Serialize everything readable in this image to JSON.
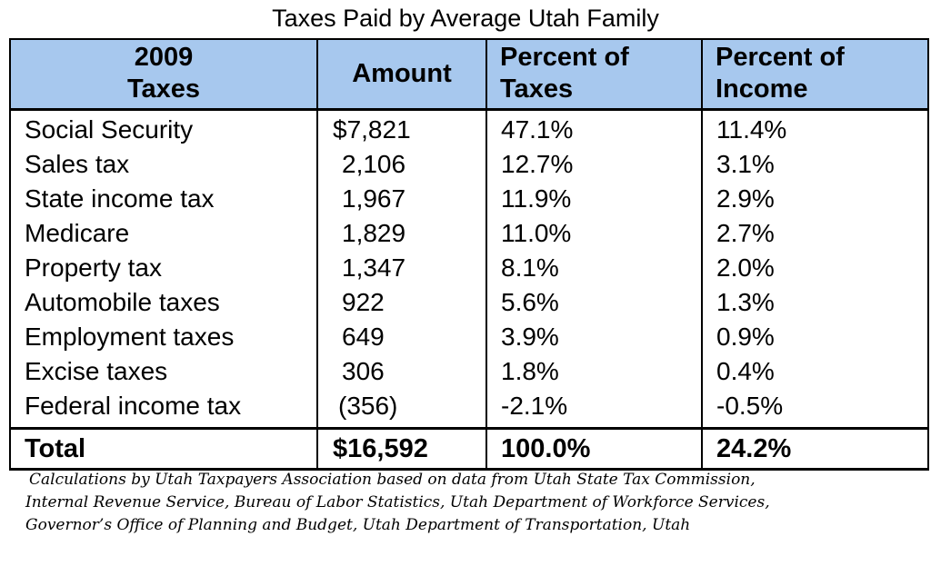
{
  "title": "Taxes Paid by Average Utah Family",
  "headers": {
    "col1_line1": "2009",
    "col1_line2": "Taxes",
    "col2": "Amount",
    "col3_line1": "Percent of",
    "col3_line2": "Taxes",
    "col4_line1": "Percent of",
    "col4_line2": "Income"
  },
  "rows": [
    {
      "tax": "Social Security",
      "amount": "$7,821",
      "pct_taxes": "47.1%",
      "pct_income": "11.4%"
    },
    {
      "tax": "Sales tax",
      "amount": "2,106",
      "pct_taxes": "12.7%",
      "pct_income": "3.1%"
    },
    {
      "tax": "State income tax",
      "amount": "1,967",
      "pct_taxes": "11.9%",
      "pct_income": "2.9%"
    },
    {
      "tax": "Medicare",
      "amount": "1,829",
      "pct_taxes": "11.0%",
      "pct_income": "2.7%"
    },
    {
      "tax": "Property tax",
      "amount": "1,347",
      "pct_taxes": "8.1%",
      "pct_income": "2.0%"
    },
    {
      "tax": "Automobile taxes",
      "amount": "922",
      "pct_taxes": "5.6%",
      "pct_income": "1.3%"
    },
    {
      "tax": "Employment taxes",
      "amount": "649",
      "pct_taxes": "3.9%",
      "pct_income": "0.9%"
    },
    {
      "tax": "Excise taxes",
      "amount": "306",
      "pct_taxes": "1.8%",
      "pct_income": "0.4%"
    },
    {
      "tax": "Federal income tax",
      "amount": "(356)",
      "pct_taxes": "-2.1%",
      "pct_income": "-0.5%"
    }
  ],
  "total": {
    "label": "Total",
    "amount": "$16,592",
    "pct_taxes": "100.0%",
    "pct_income": "24.2%"
  },
  "source_lines": [
    "Calculations by Utah Taxpayers Association based on data from Utah State Tax Commission,",
    "Internal Revenue Service, Bureau of Labor Statistics, Utah Department of Workforce Services,",
    "Governor’s Office of Planning and Budget, Utah Department of Transportation, Utah"
  ],
  "colors": {
    "header_background": "#a7c8ee",
    "border": "#000000"
  }
}
